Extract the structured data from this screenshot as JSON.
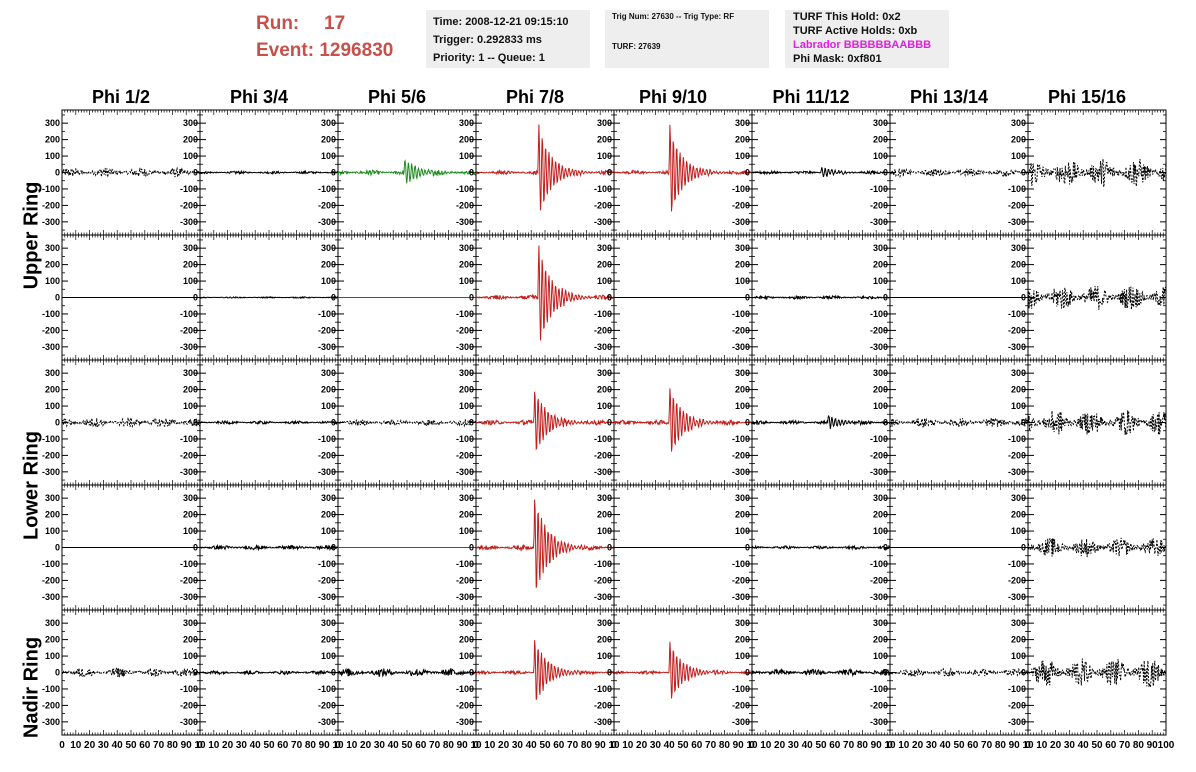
{
  "header": {
    "run_label": "Run:",
    "run_value": "17",
    "event_label": "Event:",
    "event_value": "1296830",
    "time": "Time: 2008-12-21 09:15:10",
    "trigger": "Trigger: 0.292833 ms",
    "priority": "Priority: 1 -- Queue: 1",
    "trig_num": "Trig Num: 27630 -- Trig Type: RF",
    "turf": "TURF: 27639",
    "turf_hold": "TURF This Hold: 0x2",
    "turf_active": "TURF Active Holds: 0xb",
    "labrador": "Labrador BBBBBBAABBB",
    "phi_mask": "Phi Mask: 0xf801"
  },
  "columns": [
    "Phi 1/2",
    "Phi 3/4",
    "Phi 5/6",
    "Phi 7/8",
    "Phi 9/10",
    "Phi 11/12",
    "Phi 13/14",
    "Phi 15/16"
  ],
  "ring_labels": [
    "Upper Ring",
    "Lower Ring",
    "Nadir Ring"
  ],
  "colors": {
    "header_red": "#c8504b",
    "labrador_magenta": "#e020e0",
    "trace_black": "#000000",
    "trace_red": "#c0201c",
    "trace_green": "#1f8c1f"
  },
  "chart_data": {
    "type": "line",
    "title": "",
    "xlabel": "",
    "ylabel": "",
    "xlim": [
      0,
      100
    ],
    "ylim": [
      -380,
      380
    ],
    "yticks": [
      -300,
      -200,
      -100,
      0,
      100,
      200,
      300
    ],
    "xticks": [
      0,
      10,
      20,
      30,
      40,
      50,
      60,
      70,
      80,
      90,
      100
    ],
    "xtick_labels_per_panel": [
      "0",
      "10",
      "20",
      "30",
      "40",
      "50",
      "60",
      "70",
      "80",
      "90",
      "10"
    ],
    "xtick_labels_last_panel": [
      "0",
      "10",
      "20",
      "30",
      "40",
      "50",
      "60",
      "70",
      "80",
      "90",
      "100"
    ],
    "grid": false,
    "rows": 5,
    "cols": 8,
    "row_groups": [
      {
        "label": "Upper Ring",
        "rows": [
          0,
          1
        ]
      },
      {
        "label": "Lower Ring",
        "rows": [
          2,
          3
        ]
      },
      {
        "label": "Nadir Ring",
        "rows": [
          4
        ]
      }
    ],
    "panels": [
      [
        {
          "color": "black",
          "style": "dashed",
          "noise": 30,
          "burst": 0,
          "burst_at": 0
        },
        {
          "color": "black",
          "style": "solid",
          "noise": 8,
          "burst": 0,
          "burst_at": 0
        },
        {
          "color": "green",
          "style": "solid",
          "noise": 15,
          "burst": 90,
          "burst_at": 48
        },
        {
          "color": "red",
          "style": "solid",
          "noise": 12,
          "burst": 300,
          "burst_at": 45
        },
        {
          "color": "red",
          "style": "solid",
          "noise": 12,
          "burst": 300,
          "burst_at": 40
        },
        {
          "color": "black",
          "style": "solid",
          "noise": 10,
          "burst": 35,
          "burst_at": 50
        },
        {
          "color": "black",
          "style": "dashed",
          "noise": 25,
          "burst": 0,
          "burst_at": 0
        },
        {
          "color": "black",
          "style": "dashed",
          "noise": 90,
          "burst": 0,
          "burst_at": 0
        }
      ],
      [
        {
          "color": "black",
          "style": "flat",
          "noise": 0,
          "burst": 0,
          "burst_at": 0
        },
        {
          "color": "black",
          "style": "solid",
          "noise": 4,
          "burst": 0,
          "burst_at": 0
        },
        {
          "color": "red",
          "style": "flat",
          "noise": 0,
          "burst": 0,
          "burst_at": 0
        },
        {
          "color": "red",
          "style": "solid",
          "noise": 15,
          "burst": 330,
          "burst_at": 45
        },
        {
          "color": "black",
          "style": "flat",
          "noise": 0,
          "burst": 0,
          "burst_at": 0
        },
        {
          "color": "black",
          "style": "solid",
          "noise": 10,
          "burst": 0,
          "burst_at": 0
        },
        {
          "color": "black",
          "style": "flat",
          "noise": 0,
          "burst": 0,
          "burst_at": 0
        },
        {
          "color": "black",
          "style": "dashed",
          "noise": 80,
          "burst": 0,
          "burst_at": 0
        }
      ],
      [
        {
          "color": "black",
          "style": "dashed",
          "noise": 30,
          "burst": 0,
          "burst_at": 0
        },
        {
          "color": "black",
          "style": "solid",
          "noise": 10,
          "burst": 0,
          "burst_at": 0
        },
        {
          "color": "black",
          "style": "dashed",
          "noise": 20,
          "burst": 0,
          "burst_at": 0
        },
        {
          "color": "red",
          "style": "solid",
          "noise": 15,
          "burst": 220,
          "burst_at": 42
        },
        {
          "color": "red",
          "style": "solid",
          "noise": 15,
          "burst": 230,
          "burst_at": 40
        },
        {
          "color": "black",
          "style": "solid",
          "noise": 12,
          "burst": 45,
          "burst_at": 55
        },
        {
          "color": "black",
          "style": "dashed",
          "noise": 30,
          "burst": 0,
          "burst_at": 0
        },
        {
          "color": "black",
          "style": "dashed",
          "noise": 80,
          "burst": 0,
          "burst_at": 0
        }
      ],
      [
        {
          "color": "black",
          "style": "flat",
          "noise": 0,
          "burst": 0,
          "burst_at": 0
        },
        {
          "color": "black",
          "style": "solid",
          "noise": 14,
          "burst": 0,
          "burst_at": 0
        },
        {
          "color": "red",
          "style": "flat",
          "noise": 0,
          "burst": 0,
          "burst_at": 0
        },
        {
          "color": "red",
          "style": "solid",
          "noise": 15,
          "burst": 330,
          "burst_at": 42
        },
        {
          "color": "black",
          "style": "flat",
          "noise": 0,
          "burst": 0,
          "burst_at": 0
        },
        {
          "color": "black",
          "style": "solid",
          "noise": 10,
          "burst": 0,
          "burst_at": 0
        },
        {
          "color": "black",
          "style": "flat",
          "noise": 0,
          "burst": 0,
          "burst_at": 0
        },
        {
          "color": "black",
          "style": "dashed",
          "noise": 60,
          "burst": 0,
          "burst_at": 0
        }
      ],
      [
        {
          "color": "black",
          "style": "dashed",
          "noise": 30,
          "burst": 0,
          "burst_at": 0
        },
        {
          "color": "black",
          "style": "solid",
          "noise": 12,
          "burst": 0,
          "burst_at": 0
        },
        {
          "color": "black",
          "style": "solid",
          "noise": 25,
          "burst": 0,
          "burst_at": 0
        },
        {
          "color": "red",
          "style": "solid",
          "noise": 12,
          "burst": 220,
          "burst_at": 42
        },
        {
          "color": "red",
          "style": "solid",
          "noise": 12,
          "burst": 200,
          "burst_at": 40
        },
        {
          "color": "black",
          "style": "solid",
          "noise": 20,
          "burst": 0,
          "burst_at": 0
        },
        {
          "color": "black",
          "style": "dashed",
          "noise": 25,
          "burst": 0,
          "burst_at": 0
        },
        {
          "color": "black",
          "style": "dashed",
          "noise": 90,
          "burst": 0,
          "burst_at": 0
        }
      ]
    ]
  }
}
